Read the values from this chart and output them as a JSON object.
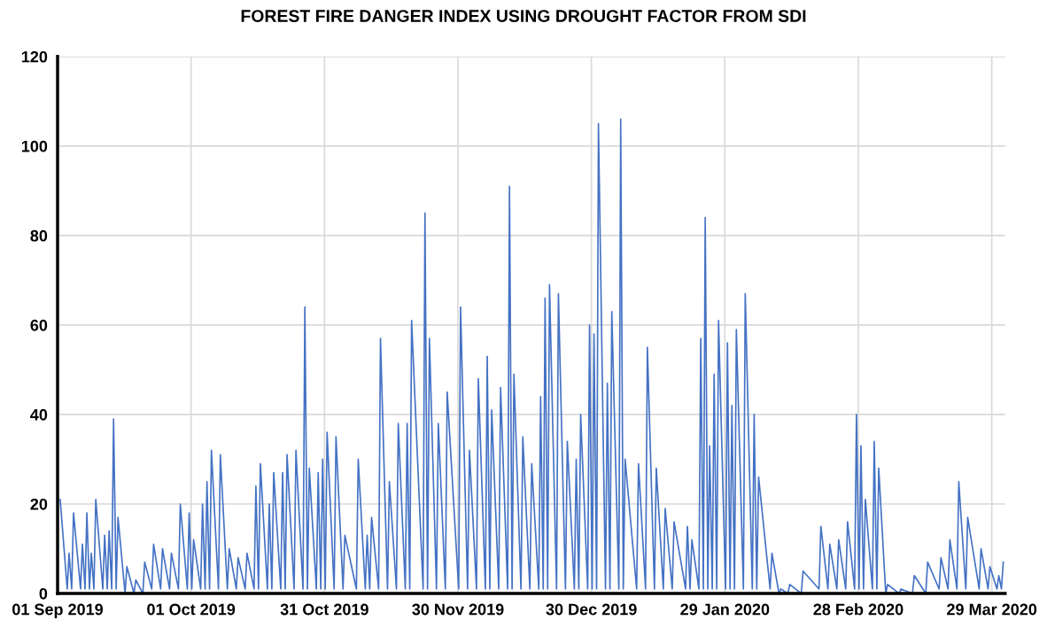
{
  "chart_data": {
    "type": "line",
    "title": "FOREST FIRE DANGER INDEX USING DROUGHT FACTOR FROM SDI",
    "x": [
      "2019-09-01T14:00",
      "2019-09-03T04:00",
      "2019-09-03T14:00",
      "2019-09-04T04:00",
      "2019-09-04T14:00",
      "2019-09-06T04:00",
      "2019-09-06T14:00",
      "2019-09-07T04:00",
      "2019-09-07T14:00",
      "2019-09-08T04:00",
      "2019-09-08T14:00",
      "2019-09-09T04:00",
      "2019-09-09T14:00",
      "2019-09-11T04:00",
      "2019-09-11T14:00",
      "2019-09-12T04:00",
      "2019-09-12T14:00",
      "2019-09-13T04:00",
      "2019-09-13T14:00",
      "2019-09-14T04:00",
      "2019-09-14T14:00",
      "2019-09-16T04:00",
      "2019-09-16T14:00",
      "2019-09-18T04:00",
      "2019-09-18T14:00",
      "2019-09-20T04:00",
      "2019-09-20T14:00",
      "2019-09-22T04:00",
      "2019-09-22T14:00",
      "2019-09-24T04:00",
      "2019-09-24T14:00",
      "2019-09-26T04:00",
      "2019-09-26T14:00",
      "2019-09-28T04:00",
      "2019-09-28T14:00",
      "2019-09-30T04:00",
      "2019-09-30T14:00",
      "2019-10-01T04:00",
      "2019-10-01T14:00",
      "2019-10-03T04:00",
      "2019-10-03T14:00",
      "2019-10-04T04:00",
      "2019-10-04T14:00",
      "2019-10-05T04:00",
      "2019-10-05T14:00",
      "2019-10-07T04:00",
      "2019-10-07T14:00",
      "2019-10-09T04:00",
      "2019-10-09T14:00",
      "2019-10-11T04:00",
      "2019-10-11T14:00",
      "2019-10-13T04:00",
      "2019-10-13T14:00",
      "2019-10-15T04:00",
      "2019-10-15T14:00",
      "2019-10-16T04:00",
      "2019-10-16T14:00",
      "2019-10-18T04:00",
      "2019-10-18T14:00",
      "2019-10-19T04:00",
      "2019-10-19T14:00",
      "2019-10-21T04:00",
      "2019-10-21T14:00",
      "2019-10-22T04:00",
      "2019-10-22T14:00",
      "2019-10-24T04:00",
      "2019-10-24T14:00",
      "2019-10-26T04:00",
      "2019-10-26T14:00",
      "2019-10-27T04:00",
      "2019-10-27T14:00",
      "2019-10-29T04:00",
      "2019-10-29T14:00",
      "2019-10-30T04:00",
      "2019-10-30T14:00",
      "2019-10-31T04:00",
      "2019-10-31T14:00",
      "2019-11-02T04:00",
      "2019-11-02T14:00",
      "2019-11-04T04:00",
      "2019-11-04T14:00",
      "2019-11-07T04:00",
      "2019-11-07T14:00",
      "2019-11-09T04:00",
      "2019-11-09T14:00",
      "2019-11-10T04:00",
      "2019-11-10T14:00",
      "2019-11-12T04:00",
      "2019-11-12T14:00",
      "2019-11-14T04:00",
      "2019-11-14T14:00",
      "2019-11-16T04:00",
      "2019-11-16T14:00",
      "2019-11-18T04:00",
      "2019-11-18T14:00",
      "2019-11-19T04:00",
      "2019-11-19T14:00",
      "2019-11-22T04:00",
      "2019-11-22T14:00",
      "2019-11-23T04:00",
      "2019-11-23T14:00",
      "2019-11-25T04:00",
      "2019-11-25T14:00",
      "2019-11-27T04:00",
      "2019-11-27T14:00",
      "2019-11-30T04:00",
      "2019-11-30T14:00",
      "2019-12-02T04:00",
      "2019-12-02T14:00",
      "2019-12-04T04:00",
      "2019-12-04T14:00",
      "2019-12-06T04:00",
      "2019-12-06T14:00",
      "2019-12-07T04:00",
      "2019-12-07T14:00",
      "2019-12-09T04:00",
      "2019-12-09T14:00",
      "2019-12-11T04:00",
      "2019-12-11T14:00",
      "2019-12-12T04:00",
      "2019-12-12T14:00",
      "2019-12-14T04:00",
      "2019-12-14T14:00",
      "2019-12-16T04:00",
      "2019-12-16T14:00",
      "2019-12-18T04:00",
      "2019-12-18T14:00",
      "2019-12-19T04:00",
      "2019-12-19T14:00",
      "2019-12-20T04:00",
      "2019-12-20T14:00",
      "2019-12-22T04:00",
      "2019-12-22T14:00",
      "2019-12-24T04:00",
      "2019-12-24T14:00",
      "2019-12-26T04:00",
      "2019-12-26T14:00",
      "2019-12-27T04:00",
      "2019-12-27T14:00",
      "2019-12-29T04:00",
      "2019-12-29T14:00",
      "2019-12-30T04:00",
      "2019-12-30T14:00",
      "2019-12-31T04:00",
      "2019-12-31T14:00",
      "2020-01-02T04:00",
      "2020-01-02T14:00",
      "2020-01-03T04:00",
      "2020-01-03T14:00",
      "2020-01-05T04:00",
      "2020-01-05T14:00",
      "2020-01-06T04:00",
      "2020-01-06T14:00",
      "2020-01-09T04:00",
      "2020-01-09T14:00",
      "2020-01-11T04:00",
      "2020-01-11T14:00",
      "2020-01-13T04:00",
      "2020-01-13T14:00",
      "2020-01-15T04:00",
      "2020-01-15T14:00",
      "2020-01-17T04:00",
      "2020-01-17T14:00",
      "2020-01-20T04:00",
      "2020-01-20T14:00",
      "2020-01-21T04:00",
      "2020-01-21T14:00",
      "2020-01-23T04:00",
      "2020-01-23T14:00",
      "2020-01-24T04:00",
      "2020-01-24T14:00",
      "2020-01-25T04:00",
      "2020-01-25T14:00",
      "2020-01-26T04:00",
      "2020-01-26T14:00",
      "2020-01-27T04:00",
      "2020-01-27T14:00",
      "2020-01-29T04:00",
      "2020-01-29T14:00",
      "2020-01-30T04:00",
      "2020-01-30T14:00",
      "2020-01-31T04:00",
      "2020-01-31T14:00",
      "2020-02-02T04:00",
      "2020-02-02T14:00",
      "2020-02-04T04:00",
      "2020-02-04T14:00",
      "2020-02-05T04:00",
      "2020-02-05T14:00",
      "2020-02-08T04:00",
      "2020-02-08T14:00",
      "2020-02-10T04:00",
      "2020-02-10T14:00",
      "2020-02-12T04:00",
      "2020-02-12T14:00",
      "2020-02-15T04:00",
      "2020-02-15T14:00",
      "2020-02-19T04:00",
      "2020-02-19T14:00",
      "2020-02-21T04:00",
      "2020-02-21T14:00",
      "2020-02-23T04:00",
      "2020-02-23T14:00",
      "2020-02-25T04:00",
      "2020-02-25T14:00",
      "2020-02-27T04:00",
      "2020-02-27T14:00",
      "2020-02-28T04:00",
      "2020-02-28T14:00",
      "2020-02-29T04:00",
      "2020-02-29T14:00",
      "2020-03-02T04:00",
      "2020-03-02T14:00",
      "2020-03-03T04:00",
      "2020-03-03T14:00",
      "2020-03-05T04:00",
      "2020-03-05T14:00",
      "2020-03-08T04:00",
      "2020-03-08T14:00",
      "2020-03-11T04:00",
      "2020-03-11T14:00",
      "2020-03-14T04:00",
      "2020-03-14T14:00",
      "2020-03-17T04:00",
      "2020-03-17T14:00",
      "2020-03-19T04:00",
      "2020-03-19T14:00",
      "2020-03-21T04:00",
      "2020-03-21T14:00",
      "2020-03-23T04:00",
      "2020-03-23T14:00",
      "2020-03-26T04:00",
      "2020-03-26T14:00",
      "2020-03-28T04:00",
      "2020-03-28T14:00",
      "2020-03-30T04:00",
      "2020-03-30T14:00",
      "2020-03-31T04:00",
      "2020-03-31T14:00"
    ],
    "series": [
      {
        "color": "#4472c4",
        "values": [
          21,
          1,
          9,
          1,
          18,
          1,
          11,
          1,
          18,
          1,
          9,
          1,
          21,
          1,
          13,
          1,
          14,
          1,
          39,
          1,
          17,
          0,
          6,
          0,
          3,
          0,
          7,
          1,
          11,
          1,
          10,
          1,
          9,
          1,
          20,
          1,
          18,
          1,
          12,
          1,
          20,
          1,
          25,
          1,
          32,
          1,
          31,
          1,
          10,
          1,
          8,
          1,
          9,
          1,
          24,
          1,
          29,
          1,
          20,
          1,
          27,
          1,
          27,
          1,
          31,
          1,
          32,
          1,
          64,
          1,
          28,
          1,
          27,
          1,
          30,
          1,
          36,
          1,
          35,
          1,
          13,
          1,
          30,
          1,
          13,
          1,
          17,
          1,
          57,
          1,
          25,
          1,
          38,
          1,
          38,
          1,
          61,
          1,
          85,
          1,
          57,
          1,
          38,
          1,
          45,
          1,
          64,
          1,
          32,
          1,
          48,
          1,
          53,
          1,
          41,
          1,
          46,
          1,
          91,
          1,
          49,
          1,
          35,
          1,
          29,
          1,
          44,
          1,
          66,
          1,
          69,
          1,
          67,
          1,
          34,
          1,
          30,
          1,
          40,
          1,
          60,
          1,
          58,
          1,
          105,
          1,
          47,
          1,
          63,
          1,
          106,
          1,
          30,
          1,
          29,
          1,
          55,
          1,
          28,
          1,
          19,
          1,
          16,
          1,
          15,
          1,
          12,
          1,
          57,
          1,
          84,
          1,
          33,
          1,
          49,
          1,
          61,
          1,
          56,
          1,
          42,
          1,
          59,
          1,
          67,
          1,
          40,
          1,
          26,
          1,
          9,
          0,
          1,
          0,
          2,
          0,
          5,
          1,
          15,
          1,
          11,
          1,
          12,
          1,
          16,
          1,
          40,
          1,
          33,
          1,
          21,
          1,
          34,
          1,
          28,
          0,
          2,
          0,
          1,
          0,
          4,
          0,
          7,
          1,
          8,
          1,
          12,
          1,
          25,
          1,
          17,
          1,
          10,
          1,
          6,
          1,
          4,
          1,
          7
        ]
      }
    ],
    "xlim": [
      "2019-09-01",
      "2020-04-01"
    ],
    "xticks": [
      {
        "value": "2019-09-01",
        "label": "01 Sep 2019"
      },
      {
        "value": "2019-10-01",
        "label": "01 Oct 2019"
      },
      {
        "value": "2019-10-31",
        "label": "31 Oct 2019"
      },
      {
        "value": "2019-11-30",
        "label": "30 Nov 2019"
      },
      {
        "value": "2019-12-30",
        "label": "30 Dec 2019"
      },
      {
        "value": "2020-01-29",
        "label": "29 Jan 2020"
      },
      {
        "value": "2020-02-28",
        "label": "28 Feb 2020"
      },
      {
        "value": "2020-03-29",
        "label": "29 Mar 2020"
      }
    ],
    "ylim": [
      0,
      120
    ],
    "yticks": [
      0,
      20,
      40,
      60,
      80,
      100,
      120
    ],
    "grid": true,
    "line_style": "solid",
    "marker": "none"
  }
}
